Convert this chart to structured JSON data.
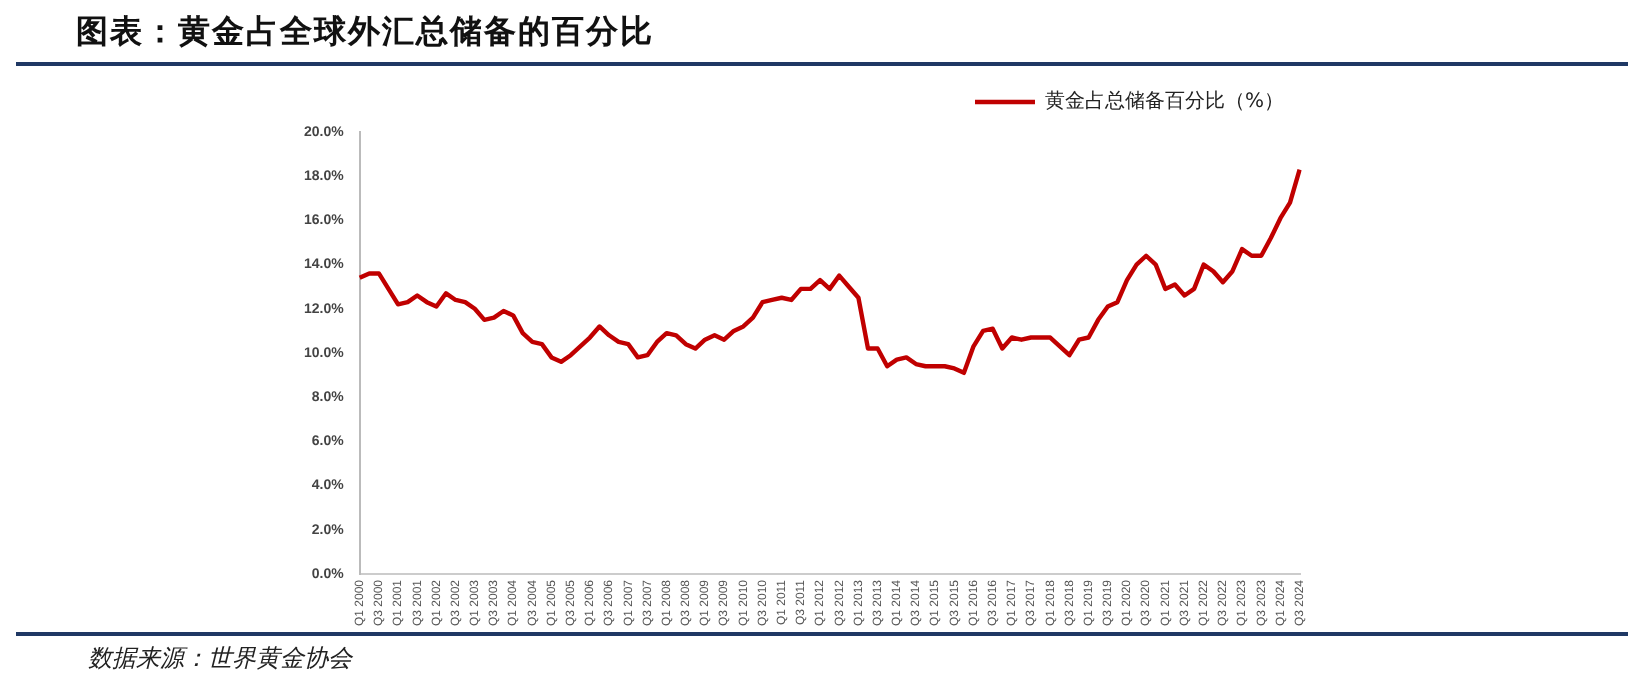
{
  "chart_data": {
    "type": "line",
    "title": "图表：黄金占全球外汇总储备的百分比",
    "annotations": [
      "数据来源：世界黄金协会"
    ],
    "categories": [
      "Q1 2000",
      null,
      "Q3 2000",
      null,
      "Q1 2001",
      null,
      "Q3 2001",
      null,
      "Q1 2002",
      null,
      "Q3 2002",
      null,
      "Q1 2003",
      null,
      "Q3 2003",
      null,
      "Q1 2004",
      null,
      "Q3 2004",
      null,
      "Q1 2005",
      null,
      "Q3 2005",
      null,
      "Q1 2006",
      null,
      "Q3 2006",
      null,
      "Q1 2007",
      null,
      "Q3 2007",
      null,
      "Q1 2008",
      null,
      "Q3 2008",
      null,
      "Q1 2009",
      null,
      "Q3 2009",
      null,
      "Q1 2010",
      null,
      "Q3 2010",
      null,
      "Q1 2011",
      null,
      "Q3 2011",
      null,
      "Q1 2012",
      null,
      "Q3 2012",
      null,
      "Q1 2013",
      null,
      "Q3 2013",
      null,
      "Q1 2014",
      null,
      "Q3 2014",
      null,
      "Q1 2015",
      null,
      "Q3 2015",
      null,
      "Q1 2016",
      null,
      "Q3 2016",
      null,
      "Q1 2017",
      null,
      "Q3 2017",
      null,
      "Q1 2018",
      null,
      "Q3 2018",
      null,
      "Q1 2019",
      null,
      "Q3 2019",
      null,
      "Q1 2020",
      null,
      "Q3 2020",
      null,
      "Q1 2021",
      null,
      "Q3 2021",
      null,
      "Q1 2022",
      null,
      "Q3 2022",
      null,
      "Q1 2023",
      null,
      "Q3 2023",
      null,
      "Q1 2024",
      null,
      "Q3 2024"
    ],
    "series": [
      {
        "name": "黄金占总储备百分比（%）",
        "color": "#c00000",
        "values": [
          13.4,
          13.6,
          13.6,
          12.9,
          12.2,
          12.3,
          12.6,
          12.3,
          12.1,
          12.7,
          12.4,
          12.3,
          12.0,
          11.5,
          11.6,
          11.9,
          11.7,
          10.9,
          10.5,
          10.4,
          9.8,
          9.6,
          9.9,
          10.3,
          10.7,
          11.2,
          10.8,
          10.5,
          10.4,
          9.8,
          9.9,
          10.5,
          10.9,
          10.8,
          10.4,
          10.2,
          10.6,
          10.8,
          10.6,
          11.0,
          11.2,
          11.6,
          12.3,
          12.4,
          12.5,
          12.4,
          12.9,
          12.9,
          13.3,
          12.9,
          13.5,
          13.0,
          12.5,
          10.2,
          10.2,
          9.4,
          9.7,
          9.8,
          9.5,
          9.4,
          9.4,
          9.4,
          9.3,
          9.1,
          10.3,
          11.0,
          11.1,
          10.2,
          10.7,
          10.6,
          10.7,
          10.7,
          10.7,
          10.3,
          9.9,
          10.6,
          10.7,
          11.5,
          12.1,
          12.3,
          13.3,
          14.0,
          14.4,
          14.0,
          12.9,
          13.1,
          12.6,
          12.9,
          14.0,
          13.7,
          13.2,
          13.7,
          14.7,
          14.4,
          14.4,
          15.2,
          16.1,
          16.8,
          18.3
        ]
      }
    ],
    "ylim": [
      0,
      20
    ],
    "yticks": [
      {
        "value": 0,
        "label": "0.0%"
      },
      {
        "value": 2,
        "label": "2.0%"
      },
      {
        "value": 4,
        "label": "4.0%"
      },
      {
        "value": 6,
        "label": "6.0%"
      },
      {
        "value": 8,
        "label": "8.0%"
      },
      {
        "value": 10,
        "label": "10.0%"
      },
      {
        "value": 12,
        "label": "12.0%"
      },
      {
        "value": 14,
        "label": "14.0%"
      },
      {
        "value": 16,
        "label": "16.0%"
      },
      {
        "value": 18,
        "label": "18.0%"
      },
      {
        "value": 20,
        "label": "20.0%"
      }
    ],
    "grid": false,
    "legend": "top right",
    "marker": "none",
    "line_style": "solid"
  }
}
